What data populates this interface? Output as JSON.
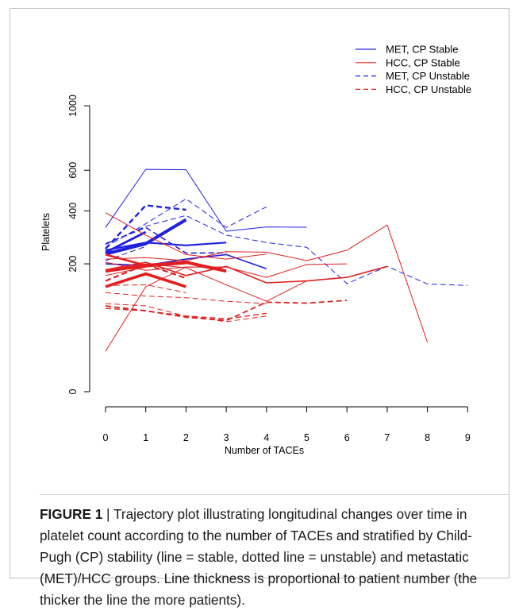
{
  "chart_data": {
    "type": "line",
    "xlabel": "Number of TACEs",
    "ylabel": "Platelets",
    "xticks": [
      0,
      1,
      2,
      3,
      4,
      5,
      6,
      7,
      8,
      9
    ],
    "yticks": [
      0,
      200,
      400,
      600,
      1000
    ],
    "y_scale": "sqrt",
    "xlim": [
      0,
      9
    ],
    "ylim": [
      0,
      1000
    ],
    "grid": false,
    "legend_position": "top-right",
    "legend": [
      {
        "label": "MET, CP Stable",
        "color": "#2020e0",
        "dashed": false
      },
      {
        "label": "HCC, CP Stable",
        "color": "#e02020",
        "dashed": false
      },
      {
        "label": "MET, CP Unstable",
        "color": "#2020e0",
        "dashed": true
      },
      {
        "label": "HCC, CP Unstable",
        "color": "#e02020",
        "dashed": true
      }
    ],
    "series": [
      {
        "group": "MET, CP Stable",
        "width": 1,
        "points": [
          [
            0,
            330
          ],
          [
            1,
            605
          ],
          [
            2,
            603
          ],
          [
            3,
            315
          ],
          [
            4,
            332
          ],
          [
            5,
            331
          ]
        ]
      },
      {
        "group": "MET, CP Stable",
        "width": 2.2,
        "points": [
          [
            0,
            245
          ],
          [
            1,
            272
          ],
          [
            2,
            262
          ],
          [
            3,
            272
          ]
        ]
      },
      {
        "group": "MET, CP Stable",
        "width": 1.6,
        "points": [
          [
            0,
            200
          ],
          [
            1,
            195
          ],
          [
            2,
            215
          ],
          [
            3,
            230
          ],
          [
            4,
            185
          ]
        ]
      },
      {
        "group": "MET, CP Stable",
        "width": 4,
        "points": [
          [
            0,
            232
          ],
          [
            1,
            268
          ],
          [
            2,
            362
          ]
        ]
      },
      {
        "group": "MET, CP Stable",
        "width": 2.8,
        "points": [
          [
            0,
            237
          ],
          [
            1,
            312
          ]
        ]
      },
      {
        "group": "MET, CP Unstable",
        "width": 2.4,
        "points": [
          [
            0,
            250
          ],
          [
            1,
            425
          ],
          [
            2,
            405
          ]
        ]
      },
      {
        "group": "MET, CP Unstable",
        "width": 1,
        "points": [
          [
            0,
            255
          ],
          [
            1,
            345
          ],
          [
            2,
            455
          ],
          [
            3,
            330
          ],
          [
            4,
            418
          ]
        ]
      },
      {
        "group": "MET, CP Unstable",
        "width": 1,
        "points": [
          [
            0,
            265
          ],
          [
            1,
            335
          ],
          [
            2,
            380
          ],
          [
            3,
            300
          ],
          [
            4,
            272
          ],
          [
            5,
            255
          ],
          [
            6,
            143
          ],
          [
            7,
            192
          ],
          [
            8,
            142
          ],
          [
            9,
            138
          ]
        ]
      },
      {
        "group": "MET, CP Unstable",
        "width": 1.6,
        "points": [
          [
            0,
            268
          ],
          [
            1,
            330
          ],
          [
            2,
            235
          ],
          [
            3,
            236
          ]
        ]
      },
      {
        "group": "MET, CP Unstable",
        "width": 1,
        "points": [
          [
            0,
            210
          ],
          [
            1,
            258
          ]
        ]
      },
      {
        "group": "HCC, CP Stable",
        "width": 1,
        "points": [
          [
            0,
            392
          ],
          [
            1,
            300
          ],
          [
            2,
            230
          ],
          [
            3,
            215
          ],
          [
            4,
            232
          ]
        ]
      },
      {
        "group": "HCC, CP Stable",
        "width": 1,
        "points": [
          [
            0,
            215
          ],
          [
            1,
            220
          ],
          [
            2,
            210
          ],
          [
            3,
            240
          ],
          [
            4,
            238
          ],
          [
            5,
            210
          ],
          [
            6,
            245
          ],
          [
            7,
            340
          ],
          [
            8,
            30
          ]
        ]
      },
      {
        "group": "HCC, CP Stable",
        "width": 1,
        "points": [
          [
            0,
            205
          ],
          [
            1,
            180
          ],
          [
            2,
            190
          ],
          [
            3,
            190
          ],
          [
            4,
            160
          ],
          [
            5,
            198
          ],
          [
            6,
            200
          ]
        ]
      },
      {
        "group": "HCC, CP Stable",
        "width": 1.6,
        "points": [
          [
            0,
            182
          ],
          [
            1,
            205
          ],
          [
            2,
            165
          ],
          [
            3,
            192
          ],
          [
            4,
            145
          ],
          [
            5,
            150
          ],
          [
            6,
            160
          ],
          [
            7,
            192
          ]
        ]
      },
      {
        "group": "HCC, CP Stable",
        "width": 1,
        "points": [
          [
            0,
            180
          ],
          [
            1,
            200
          ],
          [
            2,
            188
          ],
          [
            3,
            140
          ],
          [
            4,
            100
          ],
          [
            5,
            150
          ]
        ]
      },
      {
        "group": "HCC, CP Stable",
        "width": 1,
        "points": [
          [
            0,
            20
          ],
          [
            1,
            135
          ],
          [
            2,
            190
          ],
          [
            3,
            190
          ]
        ]
      },
      {
        "group": "HCC, CP Stable",
        "width": 1,
        "points": [
          [
            0,
            165
          ],
          [
            1,
            190
          ],
          [
            2,
            200
          ]
        ]
      },
      {
        "group": "HCC, CP Stable",
        "width": 4,
        "points": [
          [
            0,
            178
          ],
          [
            1,
            195
          ],
          [
            2,
            205
          ],
          [
            3,
            178
          ]
        ]
      },
      {
        "group": "HCC, CP Stable",
        "width": 3.6,
        "points": [
          [
            0,
            135
          ],
          [
            1,
            170
          ],
          [
            2,
            135
          ]
        ]
      },
      {
        "group": "HCC, CP Stable",
        "width": 2.6,
        "points": [
          [
            0,
            230
          ],
          [
            1,
            195
          ]
        ]
      },
      {
        "group": "HCC, CP Unstable",
        "width": 2.2,
        "points": [
          [
            0,
            150
          ],
          [
            1,
            198
          ],
          [
            2,
            158
          ]
        ]
      },
      {
        "group": "HCC, CP Unstable",
        "width": 1.8,
        "points": [
          [
            0,
            90
          ],
          [
            1,
            80
          ],
          [
            2,
            68
          ],
          [
            3,
            62
          ],
          [
            4,
            98
          ],
          [
            5,
            96
          ],
          [
            6,
            102
          ]
        ]
      },
      {
        "group": "HCC, CP Unstable",
        "width": 1,
        "points": [
          [
            0,
            95
          ],
          [
            1,
            90
          ],
          [
            2,
            70
          ],
          [
            3,
            60
          ],
          [
            4,
            70
          ]
        ]
      },
      {
        "group": "HCC, CP Unstable",
        "width": 1,
        "points": [
          [
            0,
            120
          ],
          [
            1,
            112
          ],
          [
            2,
            108
          ],
          [
            3,
            100
          ],
          [
            4,
            95
          ]
        ]
      },
      {
        "group": "HCC, CP Unstable",
        "width": 1,
        "points": [
          [
            0,
            138
          ],
          [
            1,
            140
          ],
          [
            2,
            120
          ]
        ]
      },
      {
        "group": "HCC, CP Unstable",
        "width": 1.4,
        "points": [
          [
            0,
            85
          ],
          [
            1,
            80
          ],
          [
            2,
            70
          ],
          [
            3,
            65
          ],
          [
            4,
            75
          ]
        ]
      }
    ]
  },
  "caption": {
    "label": "FIGURE 1",
    "separator": " | ",
    "text": "Trajectory plot illustrating longitudinal changes over time in platelet count according to the number of TACEs and stratified by Child-Pugh (CP) stability (line = stable, dotted line = unstable) and metastatic (MET)/HCC groups. Line thickness is proportional to patient number (the thicker the line the more patients)."
  }
}
